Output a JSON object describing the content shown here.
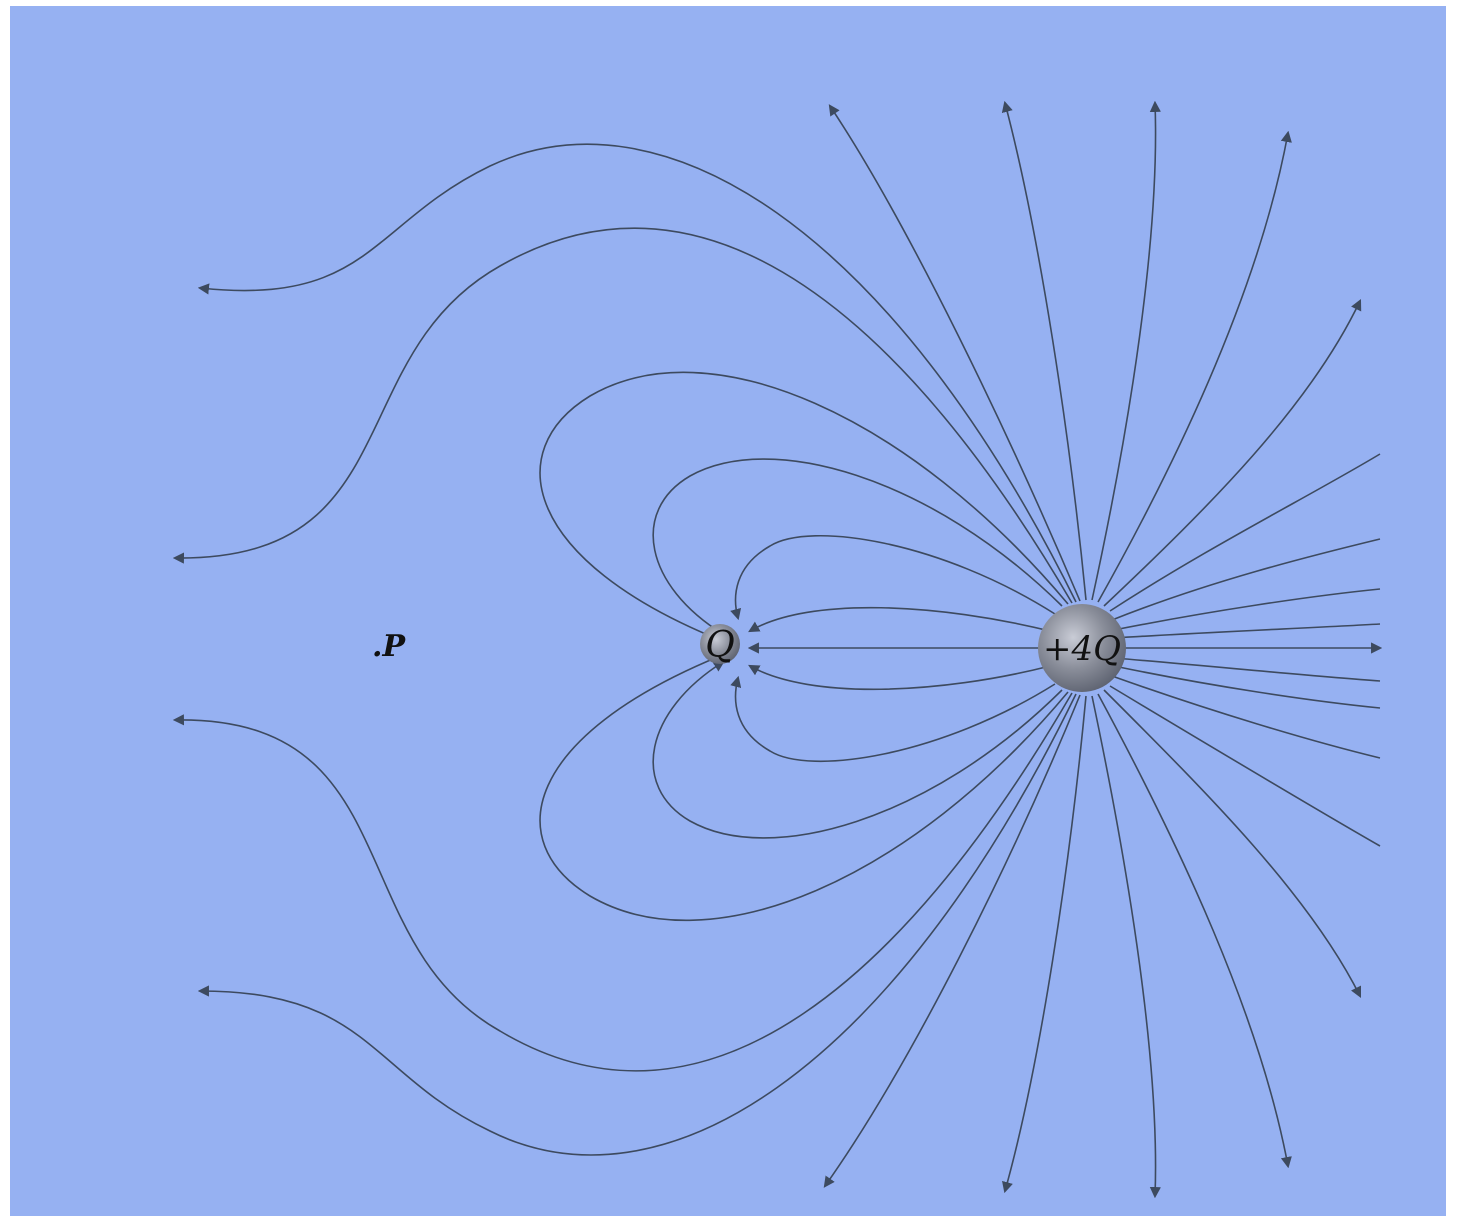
{
  "diagram": {
    "point": {
      "label": ".P"
    },
    "charges": {
      "negative": {
        "label": "Q"
      },
      "positive": {
        "label": "+4Q"
      }
    }
  },
  "colors": {
    "background": "#96b1f2",
    "lines": "#3d4a5f",
    "charge_fill": "#8a8e9a",
    "text": "#111111"
  }
}
